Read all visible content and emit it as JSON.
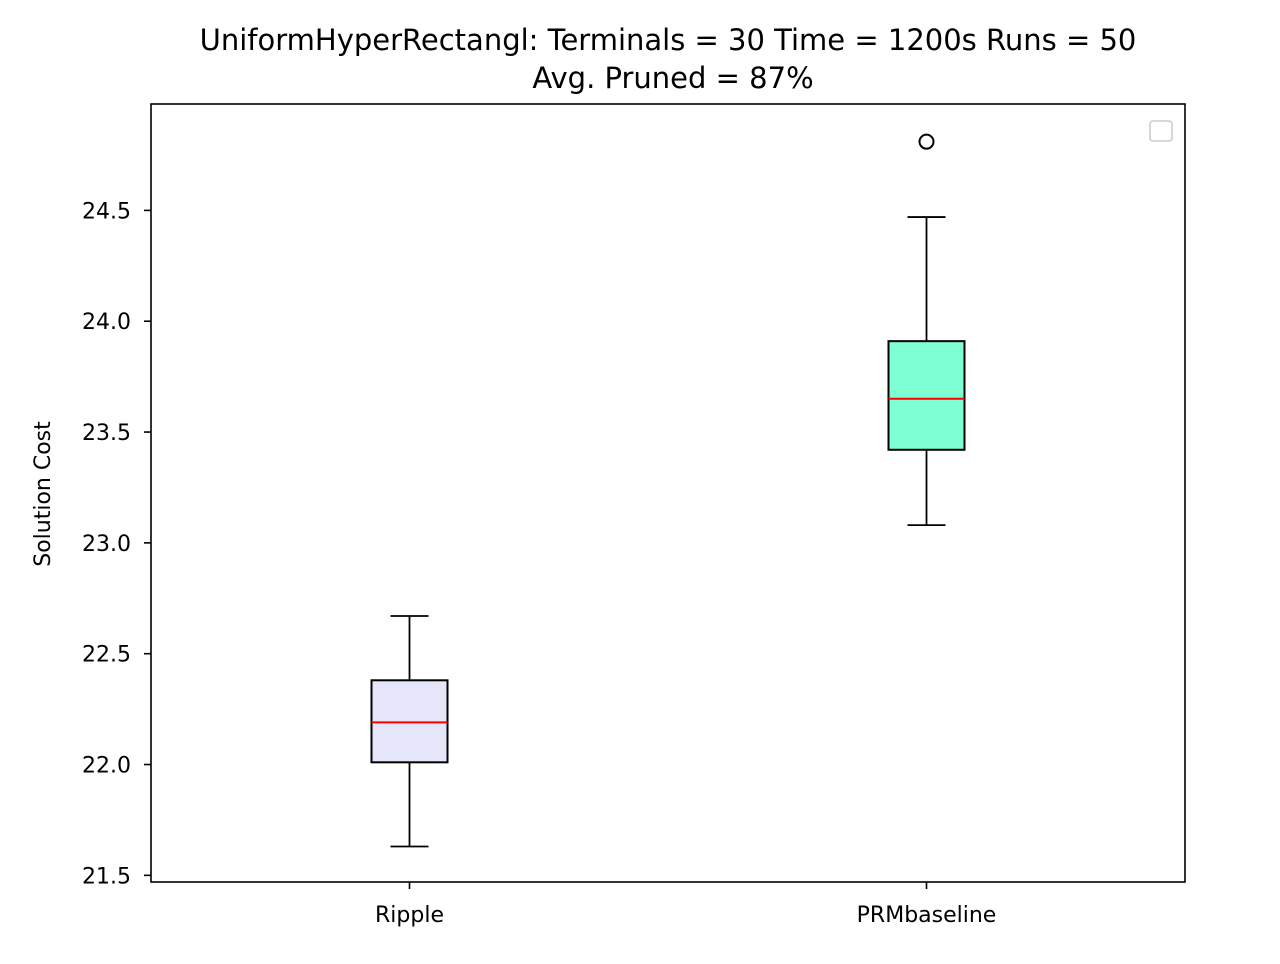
{
  "chart_data": {
    "type": "box",
    "title": "UniformHyperRectangl:  Terminals = 30  Time = 1200s  Runs = 50",
    "subtitle": "Avg. Pruned = 87%",
    "xlabel": "",
    "ylabel": "Solution Cost",
    "ylim": [
      21.47,
      24.98
    ],
    "yticks": [
      "21.5",
      "22.0",
      "22.5",
      "23.0",
      "23.5",
      "24.0",
      "24.5"
    ],
    "grid": false,
    "legend": "top-right (empty)",
    "categories": [
      "Ripple",
      "PRMbaseline"
    ],
    "boxes": [
      {
        "label": "Ripple",
        "whisker_low": 21.63,
        "q1": 22.01,
        "median": 22.19,
        "q3": 22.38,
        "whisker_high": 22.67,
        "outliers": [],
        "fill": "#e6e6fa"
      },
      {
        "label": "PRMbaseline",
        "whisker_low": 23.08,
        "q1": 23.42,
        "median": 23.65,
        "q3": 23.91,
        "whisker_high": 24.47,
        "outliers": [
          24.81
        ],
        "fill": "#7fffd4"
      }
    ],
    "colors": {
      "median_line": "#ff0000",
      "box_edge": "#000000",
      "whisker": "#000000"
    }
  }
}
